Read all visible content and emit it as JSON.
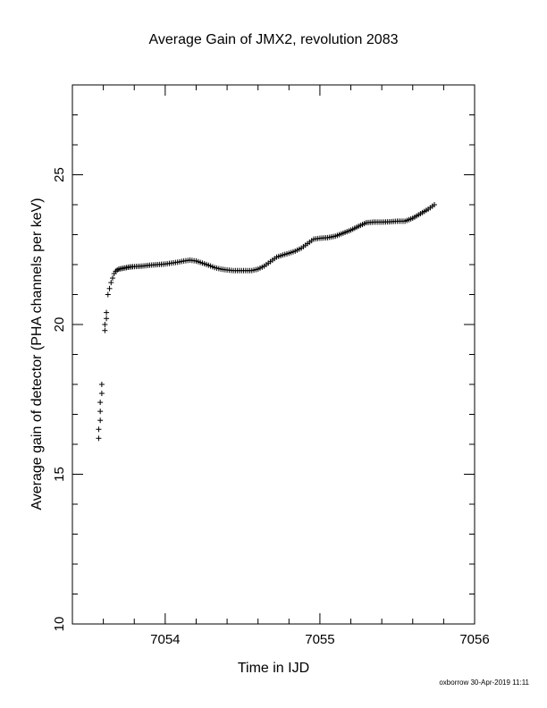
{
  "chart_data": {
    "type": "scatter",
    "title": "Average Gain of JMX2, revolution 2083",
    "xlabel": "Time in IJD",
    "ylabel": "Average gain of detector (PHA channels per keV)",
    "xlim": [
      7053.4,
      7056.0
    ],
    "ylim": [
      10,
      28
    ],
    "xticks": [
      7054,
      7055,
      7056
    ],
    "yticks": [
      10,
      15,
      20,
      25
    ],
    "marker": "+",
    "grid": false,
    "footer": "oxborrow 30-Apr-2019 11:11",
    "series": [
      {
        "x": [
          7053.57,
          7053.57,
          7053.58,
          7053.58,
          7053.58,
          7053.59,
          7053.59,
          7053.61,
          7053.61,
          7053.62,
          7053.62,
          7053.63,
          7053.64,
          7053.65,
          7053.66,
          7053.67,
          7053.68,
          7053.69,
          7053.7,
          7053.71,
          7053.72,
          7053.73,
          7053.75,
          7053.77,
          7053.79,
          7053.85,
          7053.9,
          7053.95,
          7054.0,
          7054.04,
          7054.08,
          7054.12,
          7054.16,
          7054.2,
          7054.24,
          7054.28,
          7054.32,
          7054.36,
          7054.4,
          7054.44,
          7054.48,
          7054.52,
          7054.56,
          7054.6,
          7054.64,
          7054.68,
          7054.72,
          7054.76,
          7054.8,
          7054.84,
          7054.88,
          7054.92,
          7054.96,
          7055.0,
          7055.05,
          7055.1,
          7055.15,
          7055.2,
          7055.25,
          7055.3,
          7055.35,
          7055.4,
          7055.45,
          7055.5,
          7055.55,
          7055.6,
          7055.65,
          7055.7,
          7055.74
        ],
        "y": [
          16.2,
          16.5,
          16.8,
          17.1,
          17.4,
          17.7,
          18.0,
          19.8,
          20.0,
          20.2,
          20.4,
          21.0,
          21.2,
          21.4,
          21.55,
          21.7,
          21.78,
          21.82,
          21.85,
          21.86,
          21.87,
          21.88,
          21.9,
          21.92,
          21.93,
          21.95,
          21.98,
          22.0,
          22.02,
          22.05,
          22.08,
          22.12,
          22.15,
          22.12,
          22.05,
          21.98,
          21.9,
          21.85,
          21.82,
          21.8,
          21.8,
          21.8,
          21.8,
          21.85,
          21.95,
          22.1,
          22.25,
          22.32,
          22.38,
          22.45,
          22.55,
          22.7,
          22.85,
          22.88,
          22.9,
          22.95,
          23.05,
          23.15,
          23.28,
          23.4,
          23.42,
          23.42,
          23.43,
          23.45,
          23.45,
          23.55,
          23.7,
          23.85,
          24.0
        ]
      }
    ]
  }
}
